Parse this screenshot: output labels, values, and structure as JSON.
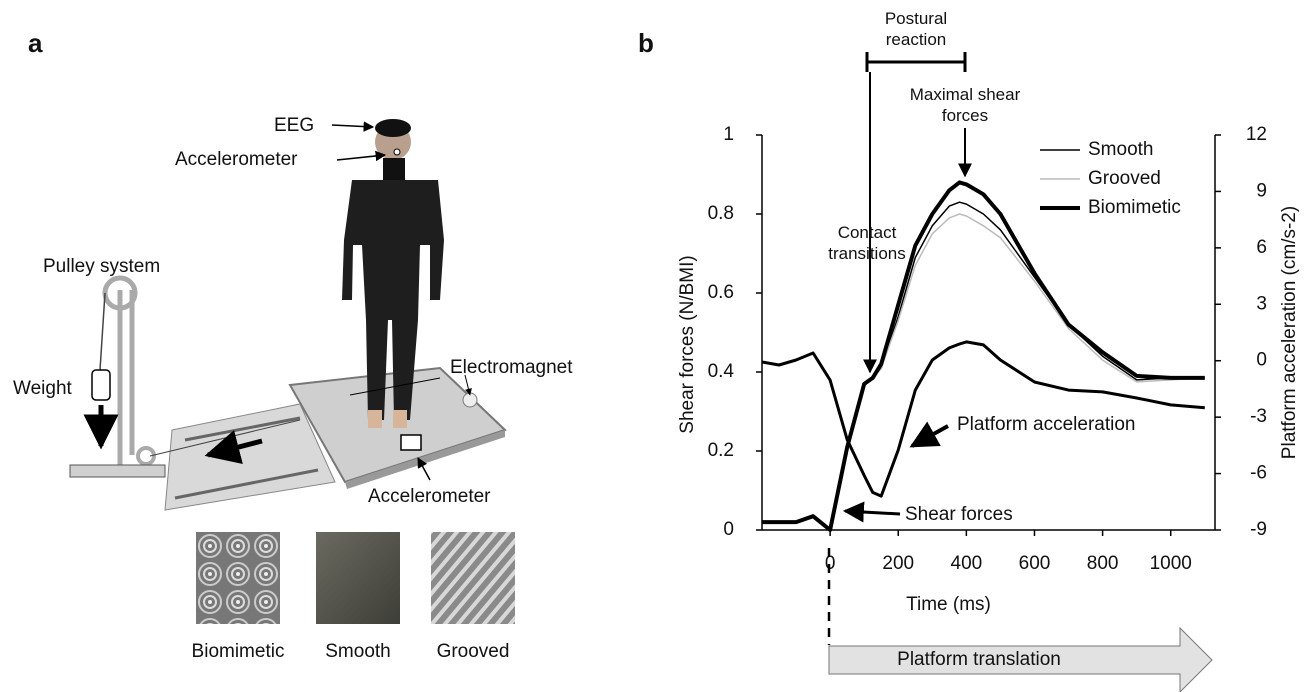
{
  "panel_a": {
    "label": "a",
    "callouts": [
      "EEG",
      "Accelerometer",
      "Pulley system",
      "Weight",
      "Electromagnet",
      "Accelerometer"
    ],
    "textures": [
      "Biomimetic",
      "Smooth",
      "Grooved"
    ]
  },
  "chart_data": {
    "type": "line",
    "panel_label": "b",
    "xlabel": "Time (ms)",
    "ylabel": "Shear forces  (N/BMI)",
    "y2label": "Platform acceleration (cm/s-2)",
    "xlim": [
      -200,
      1130
    ],
    "xticks": [
      0,
      200,
      400,
      600,
      800,
      1000
    ],
    "ylim": [
      0,
      1
    ],
    "yticks": [
      0,
      0.2,
      0.4,
      0.6,
      0.8,
      1
    ],
    "y2lim": [
      -9,
      12
    ],
    "y2ticks": [
      -9,
      -6,
      -3,
      0,
      3,
      6,
      9,
      12
    ],
    "legend": "upper right",
    "x": [
      -200,
      -150,
      -100,
      -50,
      0,
      50,
      100,
      125,
      150,
      200,
      250,
      300,
      350,
      380,
      400,
      450,
      500,
      600,
      700,
      800,
      900,
      1000,
      1100
    ],
    "series": [
      {
        "name": "Smooth",
        "color": "#000000",
        "line_width": 1.5,
        "values": [
          0.02,
          0.02,
          0.02,
          0.035,
          0.0,
          0.21,
          0.37,
          0.385,
          0.41,
          0.54,
          0.69,
          0.77,
          0.82,
          0.83,
          0.825,
          0.8,
          0.76,
          0.64,
          0.52,
          0.44,
          0.38,
          0.385,
          0.385
        ]
      },
      {
        "name": "Grooved",
        "color": "#bbbbbb",
        "line_width": 1.5,
        "values": [
          0.02,
          0.02,
          0.02,
          0.035,
          0.0,
          0.21,
          0.37,
          0.385,
          0.41,
          0.53,
          0.67,
          0.75,
          0.79,
          0.8,
          0.795,
          0.77,
          0.74,
          0.63,
          0.51,
          0.43,
          0.375,
          0.38,
          0.385
        ]
      },
      {
        "name": "Biomimetic",
        "color": "#000000",
        "line_width": 4,
        "values": [
          0.02,
          0.02,
          0.02,
          0.035,
          0.0,
          0.21,
          0.37,
          0.385,
          0.42,
          0.57,
          0.72,
          0.8,
          0.86,
          0.88,
          0.875,
          0.85,
          0.8,
          0.65,
          0.52,
          0.45,
          0.39,
          0.385,
          0.385
        ]
      },
      {
        "name": "Platform acceleration",
        "color": "#000000",
        "line_width": 3,
        "axis": "y2",
        "values": [
          -0.07,
          -0.23,
          0.04,
          0.41,
          -1.03,
          -4.2,
          -6.1,
          -7.0,
          -7.2,
          -4.75,
          -1.56,
          0.04,
          0.68,
          0.89,
          1.0,
          0.84,
          0.04,
          -1.13,
          -1.56,
          -1.66,
          -1.98,
          -2.35,
          -2.5
        ]
      }
    ],
    "annotations": [
      "Postural reaction",
      "Maximal shear forces",
      "Contact transitions",
      "Shear forces"
    ],
    "bottom_arrow": "Platform translation"
  }
}
